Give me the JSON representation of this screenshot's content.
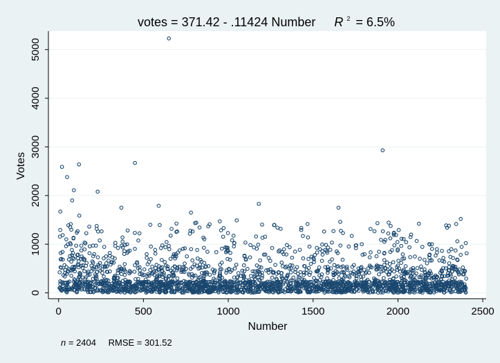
{
  "chart_data": {
    "type": "scatter",
    "title": {
      "prefix": "votes = 371.42 - .11424 Number",
      "r2_symbol": "R",
      "r2_exponent": "2",
      "r2_value": "= 6.5%"
    },
    "xlabel": "Number",
    "ylabel": "Votes",
    "xlim": [
      -60,
      2520
    ],
    "ylim": [
      -120,
      5380
    ],
    "xticks": [
      0,
      500,
      1000,
      1500,
      2000,
      2500
    ],
    "yticks": [
      0,
      1000,
      2000,
      3000,
      4000,
      5000
    ],
    "grid": "horizontal",
    "note": {
      "n_label": "n",
      "n_value": " = 2404",
      "rmse": "RMSE =   301.52"
    },
    "colors": {
      "background": "#eaf2f3",
      "plot_area": "#ffffff",
      "marker": "#1a476f",
      "grid": "#eaf2f3"
    },
    "marker": "hollow-circle",
    "n_points": 2404,
    "highlighted_points": [
      {
        "x": 650,
        "y": 5230
      },
      {
        "x": 1910,
        "y": 2930
      },
      {
        "x": 450,
        "y": 2670
      },
      {
        "x": 120,
        "y": 2640
      },
      {
        "x": 20,
        "y": 2590
      },
      {
        "x": 50,
        "y": 2380
      },
      {
        "x": 90,
        "y": 2110
      },
      {
        "x": 230,
        "y": 2080
      },
      {
        "x": 1180,
        "y": 1830
      },
      {
        "x": 590,
        "y": 1790
      },
      {
        "x": 370,
        "y": 1750
      },
      {
        "x": 1650,
        "y": 1750
      },
      {
        "x": 80,
        "y": 1900
      },
      {
        "x": 780,
        "y": 1650
      },
      {
        "x": 10,
        "y": 1670
      },
      {
        "x": 2370,
        "y": 1520
      },
      {
        "x": 1050,
        "y": 1490
      },
      {
        "x": 950,
        "y": 1470
      },
      {
        "x": 1660,
        "y": 1460
      },
      {
        "x": 890,
        "y": 1410
      },
      {
        "x": 2290,
        "y": 1340
      },
      {
        "x": 1290,
        "y": 1340
      },
      {
        "x": 1620,
        "y": 1270
      },
      {
        "x": 1440,
        "y": 1170
      },
      {
        "x": 1900,
        "y": 1090
      },
      {
        "x": 2350,
        "y": 1060
      },
      {
        "x": 1920,
        "y": 1050
      },
      {
        "x": 2200,
        "y": 1000
      }
    ]
  }
}
